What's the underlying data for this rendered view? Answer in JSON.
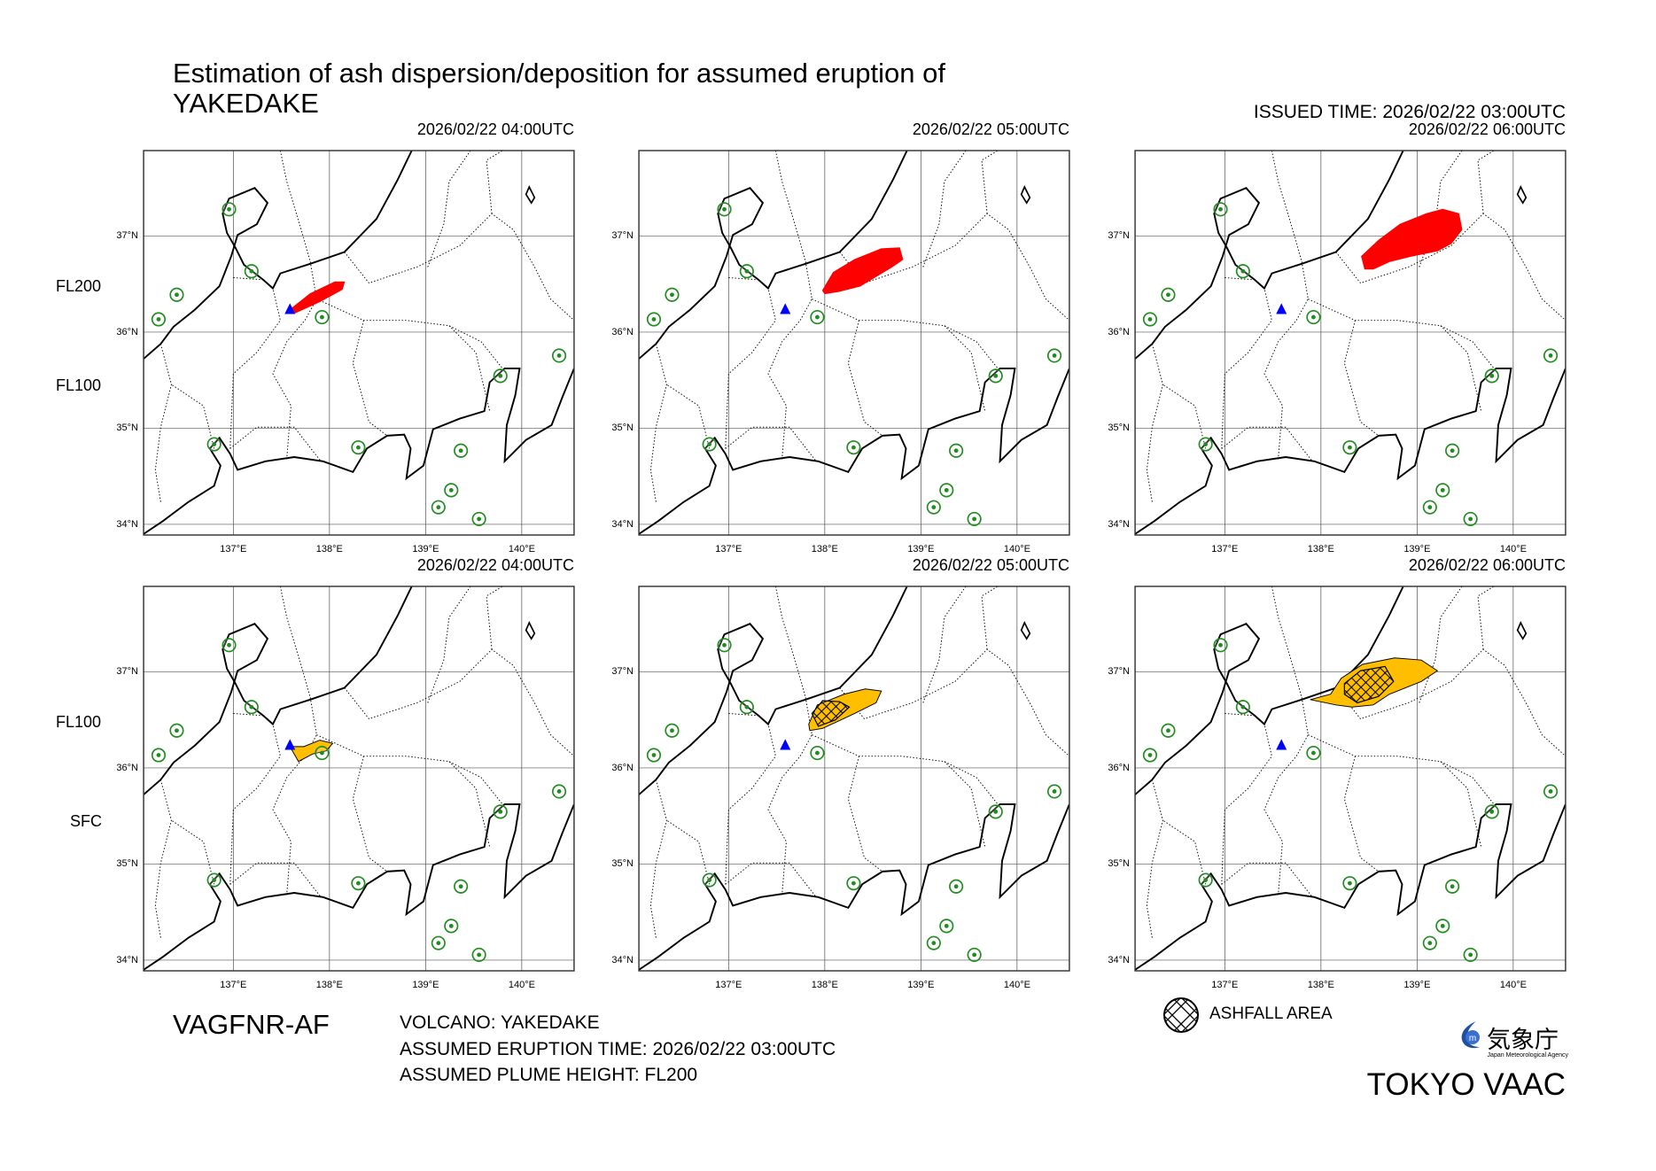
{
  "title_line1": "Estimation of ash dispersion/deposition for assumed eruption of",
  "title_line2": "YAKEDAKE",
  "issued_time": "ISSUED TIME: 2026/02/22 03:00UTC",
  "panels": [
    {
      "time": "2026/02/22 04:00UTC",
      "row": "upper",
      "fill": "#ff0000",
      "ashfall": false
    },
    {
      "time": "2026/02/22 05:00UTC",
      "row": "upper",
      "fill": "#ff0000",
      "ashfall": false
    },
    {
      "time": "2026/02/22 06:00UTC",
      "row": "upper",
      "fill": "#ff0000",
      "ashfall": false
    },
    {
      "time": "2026/02/22 04:00UTC",
      "row": "lower",
      "fill": "#ffbf00",
      "ashfall": false
    },
    {
      "time": "2026/02/22 05:00UTC",
      "row": "lower",
      "fill": "#ffbf00",
      "ashfall": true
    },
    {
      "time": "2026/02/22 06:00UTC",
      "row": "lower",
      "fill": "#ffbf00",
      "ashfall": true
    }
  ],
  "lat_labels": [
    "37°N",
    "36°N",
    "35°N",
    "34°N"
  ],
  "lon_labels": [
    "137°E",
    "138°E",
    "139°E",
    "140°E"
  ],
  "levels_upper": {
    "top": "FL200",
    "bottom": "FL100"
  },
  "levels_lower": {
    "top": "FL100",
    "bottom": "SFC"
  },
  "product_code": "VAGFNR-AF",
  "volcano": "VOLCANO: YAKEDAKE",
  "eruption_time": "ASSUMED ERUPTION TIME: 2026/02/22 03:00UTC",
  "plume_height": "ASSUMED PLUME HEIGHT: FL200",
  "legend": {
    "ashfall_label": "ASHFALL AREA",
    "icon": "crosshatch-circle-icon"
  },
  "logo": {
    "jp": "気象庁",
    "en": "Japan Meteorological Agency"
  },
  "center": "TOKYO VAAC",
  "colors": {
    "upper_ash": "#ff0000",
    "lower_ash": "#ffbf00",
    "volcano": "#0000ff",
    "airport": "#228b22"
  }
}
